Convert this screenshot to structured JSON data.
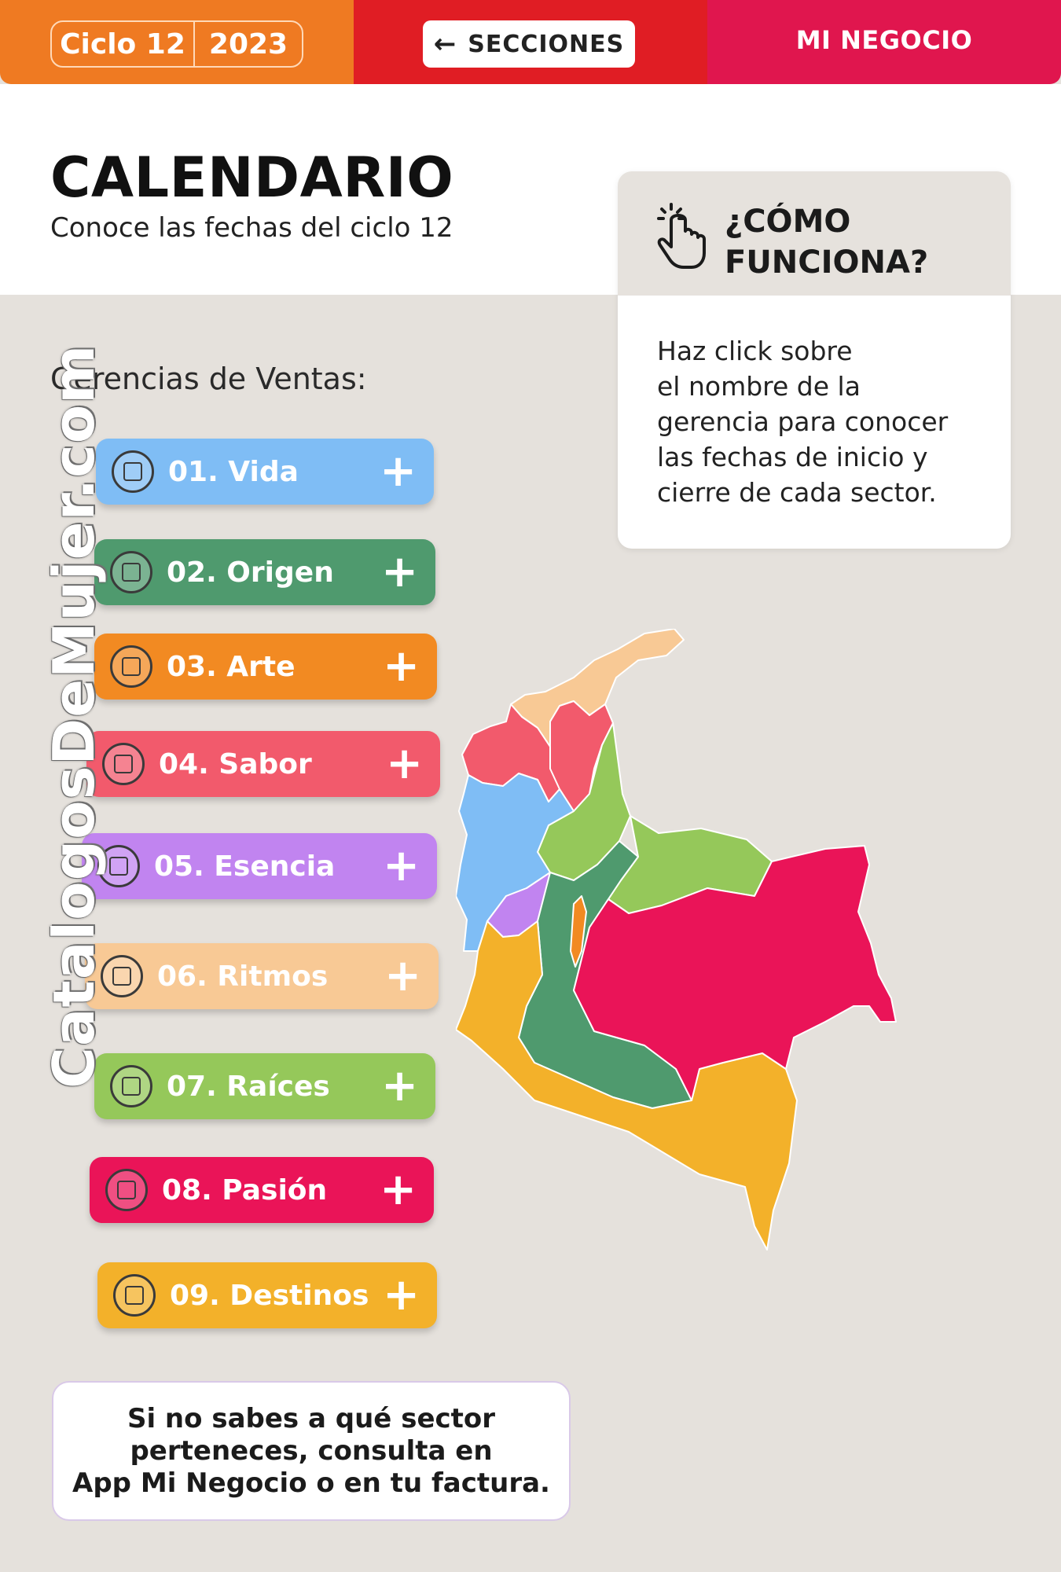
{
  "topbar": {
    "cycle_label": "Ciclo 12",
    "year_label": "2023",
    "sections_arrow": "←",
    "sections_label": "SECCIONES",
    "business_label": "MI NEGOCIO",
    "colors": {
      "left": "#ef7a22",
      "middle": "#e01d24",
      "right": "#e0164e"
    }
  },
  "header": {
    "title": "CALENDARIO",
    "subtitle": "Conoce las fechas del ciclo 12"
  },
  "how_it_works": {
    "title_line1": "¿CÓMO",
    "title_line2": "FUNCIONA?",
    "icon": "pointing-hand-icon",
    "body_lines": [
      "Haz click sobre",
      "el nombre de la",
      "gerencia para conocer",
      "las fechas de inicio y",
      "cierre de cada sector."
    ]
  },
  "gerencias": {
    "label": "Gerencias de Ventas:",
    "items": [
      {
        "label": "01. Vida",
        "color": "#7fbdf5",
        "plus": "+"
      },
      {
        "label": "02. Origen",
        "color": "#4f9a6e",
        "plus": "+"
      },
      {
        "label": "03. Arte",
        "color": "#f28a22",
        "plus": "+"
      },
      {
        "label": "04. Sabor",
        "color": "#f25a6c",
        "plus": "+"
      },
      {
        "label": "05. Esencia",
        "color": "#c184f0",
        "plus": "+"
      },
      {
        "label": "06. Ritmos",
        "color": "#f8c995",
        "plus": "+"
      },
      {
        "label": "07. Raíces",
        "color": "#95c85a",
        "plus": "+"
      },
      {
        "label": "08. Pasión",
        "color": "#ea1458",
        "plus": "+"
      },
      {
        "label": "09. Destinos",
        "color": "#f3b12a",
        "plus": "+"
      }
    ]
  },
  "note": {
    "line1": "Si no sabes a qué sector",
    "line2": "perteneces, consulta en",
    "line3": "App Mi Negocio o en tu factura."
  },
  "watermark": "CatalogosDeMujer.com"
}
